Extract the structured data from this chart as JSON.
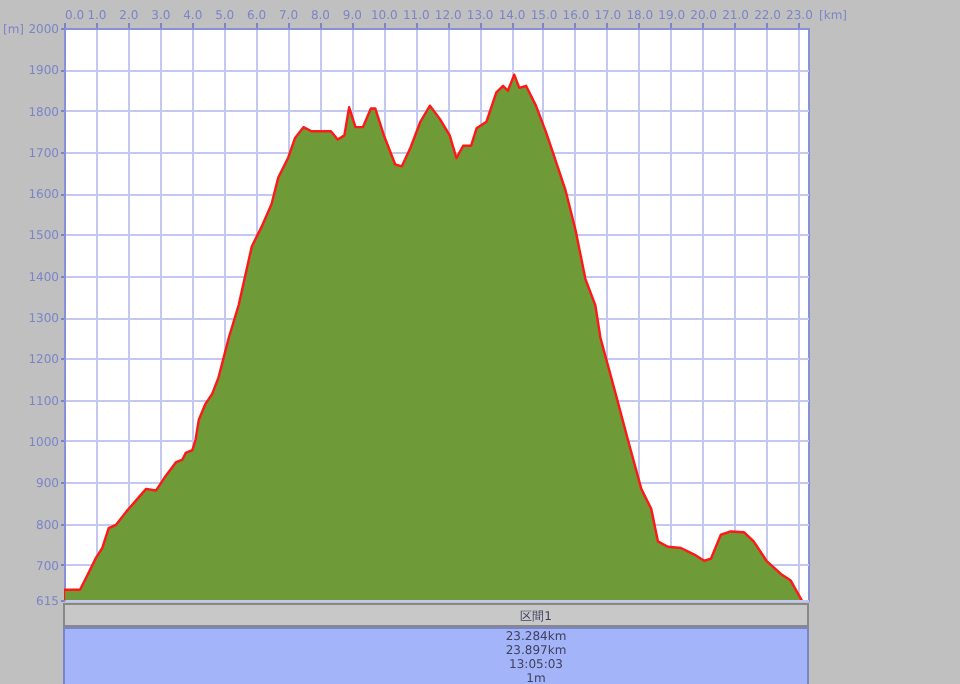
{
  "chart_data": {
    "type": "area",
    "xlabel": "[km]",
    "ylabel": "[m]",
    "xlim": [
      0,
      23.3
    ],
    "ylim": [
      615,
      2000
    ],
    "xticks": [
      {
        "value": 0,
        "label": "0.0"
      },
      {
        "value": 1,
        "label": "1.0"
      },
      {
        "value": 2,
        "label": "2.0"
      },
      {
        "value": 3,
        "label": "3.0"
      },
      {
        "value": 4,
        "label": "4.0"
      },
      {
        "value": 5,
        "label": "5.0"
      },
      {
        "value": 6,
        "label": "6.0"
      },
      {
        "value": 7,
        "label": "7.0"
      },
      {
        "value": 8,
        "label": "8.0"
      },
      {
        "value": 9,
        "label": "9.0"
      },
      {
        "value": 10,
        "label": "10.0"
      },
      {
        "value": 11,
        "label": "11.0"
      },
      {
        "value": 12,
        "label": "12.0"
      },
      {
        "value": 13,
        "label": "13.0"
      },
      {
        "value": 14,
        "label": "14.0"
      },
      {
        "value": 15,
        "label": "15.0"
      },
      {
        "value": 16,
        "label": "16.0"
      },
      {
        "value": 17,
        "label": "17.0"
      },
      {
        "value": 18,
        "label": "18.0"
      },
      {
        "value": 19,
        "label": "19.0"
      },
      {
        "value": 20,
        "label": "20.0"
      },
      {
        "value": 21,
        "label": "21.0"
      },
      {
        "value": 22,
        "label": "22.0"
      },
      {
        "value": 23,
        "label": "23.0"
      }
    ],
    "yticks": [
      615,
      700,
      800,
      900,
      1000,
      1100,
      1200,
      1300,
      1400,
      1500,
      1600,
      1700,
      1800,
      1900,
      2000
    ],
    "grid": true,
    "series": [
      {
        "color": "#6e9a38",
        "x": [
          0,
          0.5,
          0.7,
          1.0,
          1.2,
          1.4,
          1.63,
          1.95,
          2.57,
          2.88,
          3.19,
          3.5,
          3.71,
          3.81,
          4.02,
          4.12,
          4.22,
          4.43,
          4.64,
          4.84,
          5.05,
          5.16,
          5.47,
          5.88,
          6.19,
          6.5,
          6.71,
          7.02,
          7.23,
          7.5,
          7.75,
          8.36,
          8.57,
          8.78,
          8.93,
          9.13,
          9.36,
          9.61,
          9.75,
          10.02,
          10.37,
          10.58,
          10.85,
          11.16,
          11.46,
          11.77,
          12.08,
          12.29,
          12.5,
          12.75,
          12.92,
          13.23,
          13.54,
          13.75,
          13.9,
          14.1,
          14.26,
          14.47,
          14.78,
          15.09,
          15.3,
          15.71,
          16.02,
          16.33,
          16.64,
          16.8,
          17.25,
          17.66,
          18.08,
          18.39,
          18.6,
          18.91,
          19.32,
          19.74,
          20.05,
          20.26,
          20.57,
          20.88,
          21.3,
          21.6,
          22.0,
          22.45,
          22.76,
          23.1
        ],
        "values": [
          640,
          640,
          670,
          717,
          741,
          789,
          797,
          829,
          884,
          880,
          916,
          948,
          955,
          971,
          978,
          1003,
          1051,
          1090,
          1114,
          1154,
          1217,
          1250,
          1329,
          1471,
          1519,
          1574,
          1638,
          1686,
          1733,
          1760,
          1750,
          1750,
          1730,
          1740,
          1808,
          1760,
          1760,
          1805,
          1805,
          1740,
          1670,
          1665,
          1710,
          1773,
          1812,
          1780,
          1740,
          1685,
          1715,
          1715,
          1757,
          1773,
          1844,
          1860,
          1848,
          1887,
          1855,
          1860,
          1812,
          1749,
          1701,
          1606,
          1511,
          1392,
          1329,
          1250,
          1122,
          1003,
          884,
          836,
          757,
          744,
          741,
          725,
          710,
          715,
          773,
          781,
          779,
          757,
          710,
          678,
          662,
          615
        ]
      }
    ],
    "annotations": [
      "区間1",
      "23.284km",
      "23.897km",
      "13:05:03",
      "1m"
    ]
  }
}
